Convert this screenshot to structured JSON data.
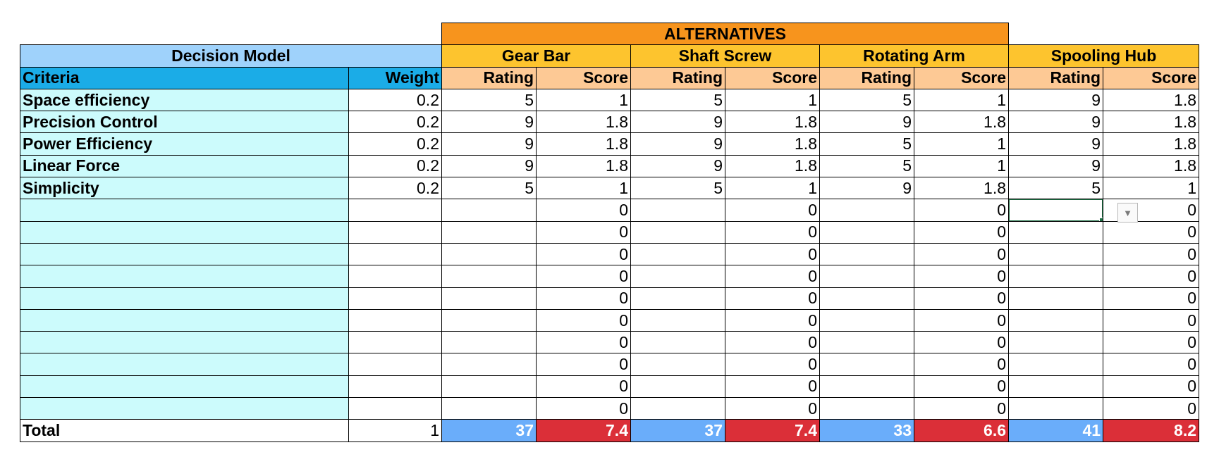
{
  "header": {
    "alternatives_label": "ALTERNATIVES",
    "decision_model_label": "Decision Model",
    "criteria_label": "Criteria",
    "weight_label": "Weight",
    "rating_label": "Rating",
    "score_label": "Score"
  },
  "alternatives": [
    "Gear Bar",
    "Shaft Screw",
    "Rotating Arm",
    "Spooling Hub"
  ],
  "rows": [
    {
      "criteria": "Space efficiency",
      "weight": "0.2",
      "cells": [
        "5",
        "1",
        "5",
        "1",
        "5",
        "1",
        "9",
        "1.8"
      ]
    },
    {
      "criteria": "Precision Control",
      "weight": "0.2",
      "cells": [
        "9",
        "1.8",
        "9",
        "1.8",
        "9",
        "1.8",
        "9",
        "1.8"
      ]
    },
    {
      "criteria": "Power Efficiency",
      "weight": "0.2",
      "cells": [
        "9",
        "1.8",
        "9",
        "1.8",
        "5",
        "1",
        "9",
        "1.8"
      ]
    },
    {
      "criteria": "Linear Force",
      "weight": "0.2",
      "cells": [
        "9",
        "1.8",
        "9",
        "1.8",
        "5",
        "1",
        "9",
        "1.8"
      ]
    },
    {
      "criteria": "Simplicity",
      "weight": "0.2",
      "cells": [
        "5",
        "1",
        "5",
        "1",
        "9",
        "1.8",
        "5",
        "1"
      ]
    },
    {
      "criteria": "",
      "weight": "",
      "cells": [
        "",
        "0",
        "",
        "0",
        "",
        "0",
        "",
        "0"
      ]
    },
    {
      "criteria": "",
      "weight": "",
      "cells": [
        "",
        "0",
        "",
        "0",
        "",
        "0",
        "",
        "0"
      ]
    },
    {
      "criteria": "",
      "weight": "",
      "cells": [
        "",
        "0",
        "",
        "0",
        "",
        "0",
        "",
        "0"
      ]
    },
    {
      "criteria": "",
      "weight": "",
      "cells": [
        "",
        "0",
        "",
        "0",
        "",
        "0",
        "",
        "0"
      ]
    },
    {
      "criteria": "",
      "weight": "",
      "cells": [
        "",
        "0",
        "",
        "0",
        "",
        "0",
        "",
        "0"
      ]
    },
    {
      "criteria": "",
      "weight": "",
      "cells": [
        "",
        "0",
        "",
        "0",
        "",
        "0",
        "",
        "0"
      ]
    },
    {
      "criteria": "",
      "weight": "",
      "cells": [
        "",
        "0",
        "",
        "0",
        "",
        "0",
        "",
        "0"
      ]
    },
    {
      "criteria": "",
      "weight": "",
      "cells": [
        "",
        "0",
        "",
        "0",
        "",
        "0",
        "",
        "0"
      ]
    },
    {
      "criteria": "",
      "weight": "",
      "cells": [
        "",
        "0",
        "",
        "0",
        "",
        "0",
        "",
        "0"
      ]
    },
    {
      "criteria": "",
      "weight": "",
      "cells": [
        "",
        "0",
        "",
        "0",
        "",
        "0",
        "",
        "0"
      ]
    }
  ],
  "total": {
    "label": "Total",
    "weight": "1",
    "cells": [
      "37",
      "7.4",
      "37",
      "7.4",
      "33",
      "6.6",
      "41",
      "8.2"
    ]
  },
  "selection": {
    "row": 5,
    "col": 6
  },
  "dropdown_icon": "dropdown-arrow-icon",
  "colors": {
    "alternatives_header": "#f7941d",
    "decision_model_header": "#9fd2fb",
    "alternative_name": "#fdc42e",
    "criteria_header": "#1bace7",
    "rating_score_header": "#fdc995",
    "criteria_cell": "#ccfbfc",
    "total_rating": "#6aadfa",
    "total_score": "#db2f38",
    "selection_border": "#1e7145"
  }
}
